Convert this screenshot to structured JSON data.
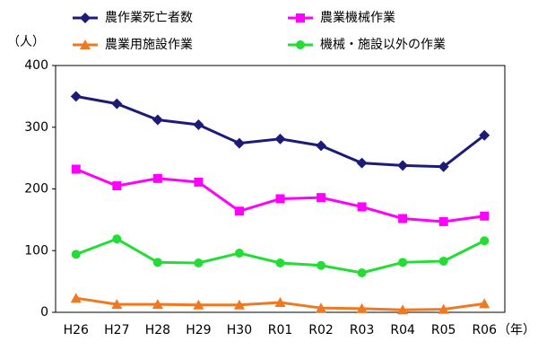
{
  "chart_data": {
    "type": "line",
    "ylabel": "（人）",
    "xlabel": "（年）",
    "categories": [
      "H26",
      "H27",
      "H28",
      "H29",
      "H30",
      "R01",
      "R02",
      "R03",
      "R04",
      "R05",
      "R06"
    ],
    "series": [
      {
        "name": "農作業死亡者数",
        "color": "#1c1c78",
        "marker": "diamond",
        "values": [
          350,
          338,
          312,
          304,
          274,
          281,
          270,
          242,
          238,
          236,
          287
        ]
      },
      {
        "name": "農業機械作業",
        "color": "#ff00ff",
        "marker": "square",
        "values": [
          232,
          205,
          217,
          211,
          164,
          184,
          186,
          171,
          152,
          147,
          156
        ]
      },
      {
        "name": "農業用施設作業",
        "color": "#f07820",
        "marker": "triangle",
        "values": [
          23,
          13,
          13,
          12,
          12,
          16,
          7,
          6,
          4,
          5,
          14
        ]
      },
      {
        "name": "機械・施設以外の作業",
        "color": "#22dd33",
        "marker": "circle",
        "values": [
          94,
          119,
          81,
          80,
          96,
          80,
          76,
          64,
          81,
          83,
          116
        ]
      }
    ],
    "ylim": [
      0,
      400
    ],
    "yticks": [
      0,
      100,
      200,
      300,
      400
    ],
    "grid": false
  }
}
